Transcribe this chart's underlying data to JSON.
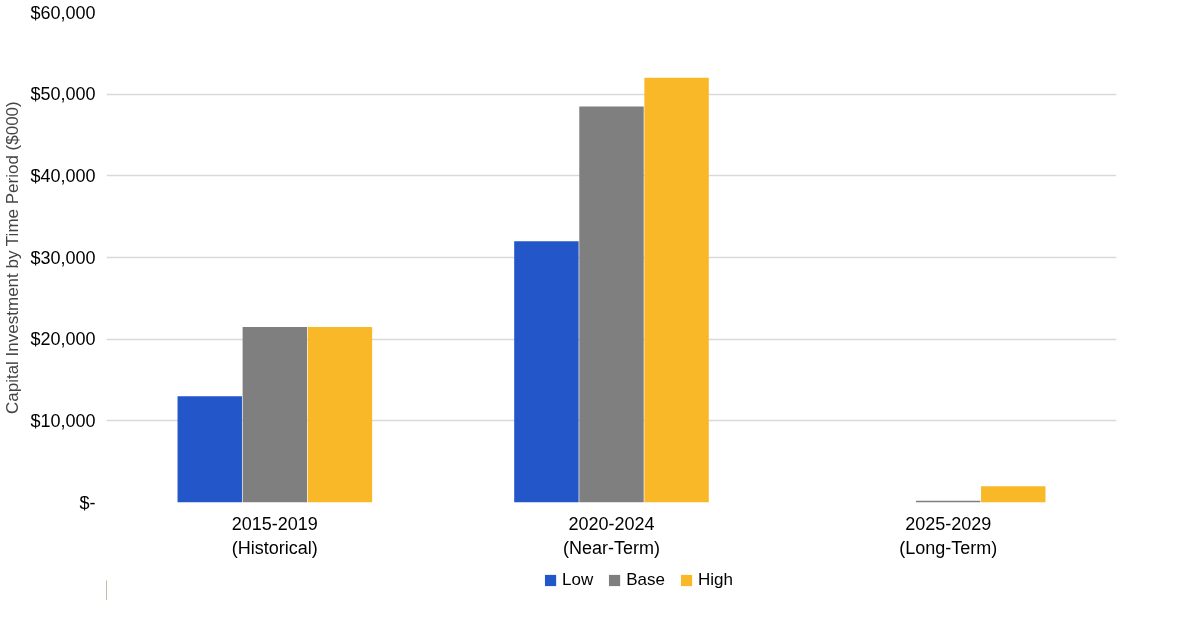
{
  "chart_data": {
    "type": "bar",
    "ylabel": "Capital Investment by Time Period ($000)",
    "categories": [
      "2015-2019\n(Historical)",
      "2020-2024\n(Near-Term)",
      "2025-2029\n(Long-Term)"
    ],
    "series": [
      {
        "name": "Low",
        "color": "#2356c8",
        "values": [
          13000,
          32000,
          0
        ]
      },
      {
        "name": "Base",
        "color": "#7f7f7f",
        "values": [
          21500,
          48500,
          200
        ]
      },
      {
        "name": "High",
        "color": "#f8b827",
        "values": [
          21500,
          52000,
          2000
        ]
      }
    ],
    "ylim": [
      0,
      60000
    ],
    "yticks": [
      {
        "value": 0,
        "label": "$-"
      },
      {
        "value": 10000,
        "label": "$10,000"
      },
      {
        "value": 20000,
        "label": "$20,000"
      },
      {
        "value": 30000,
        "label": "$30,000"
      },
      {
        "value": 40000,
        "label": "$40,000"
      },
      {
        "value": 50000,
        "label": "$50,000"
      },
      {
        "value": 60000,
        "label": "$60,000"
      }
    ],
    "grid": "y",
    "legend": "bottom"
  }
}
